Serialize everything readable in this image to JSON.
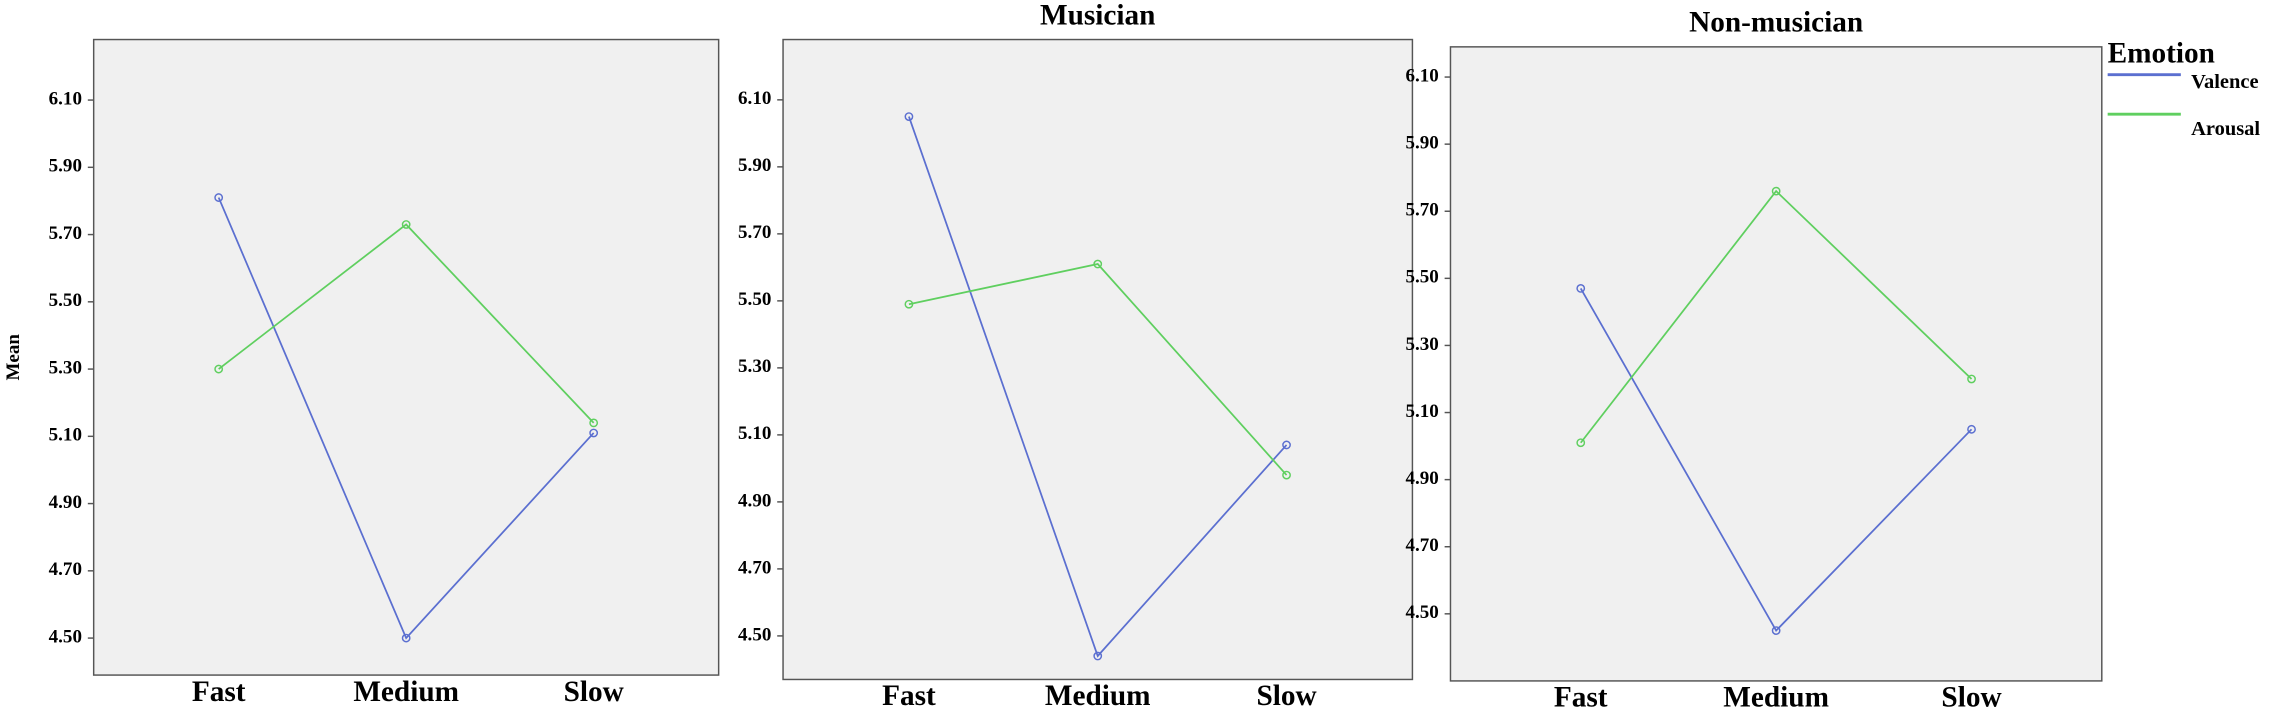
{
  "chart_data": [
    {
      "type": "line",
      "y_label": "Mean",
      "categories": [
        "Fast",
        "Medium",
        "Slow"
      ],
      "series": [
        {
          "name": "Valence",
          "color": "#5b6fd0",
          "values": [
            5.81,
            4.5,
            5.11
          ]
        },
        {
          "name": "Arousal",
          "color": "#5fcf5f",
          "values": [
            5.3,
            5.73,
            5.14
          ]
        }
      ],
      "ylim": [
        4.39,
        6.28
      ],
      "yticks": [
        {
          "value": 4.5,
          "label": "4.50"
        },
        {
          "value": 4.7,
          "label": "4.70"
        },
        {
          "value": 4.9,
          "label": "4.90"
        },
        {
          "value": 5.1,
          "label": "5.10"
        },
        {
          "value": 5.3,
          "label": "5.30"
        },
        {
          "value": 5.5,
          "label": "5.50"
        },
        {
          "value": 5.7,
          "label": "5.70"
        },
        {
          "value": 5.9,
          "label": "5.90"
        },
        {
          "value": 6.1,
          "label": "6.10"
        }
      ]
    },
    {
      "type": "line",
      "title": "Musician",
      "categories": [
        "Fast",
        "Medium",
        "Slow"
      ],
      "series": [
        {
          "name": "Valence",
          "color": "#5b6fd0",
          "values": [
            6.05,
            4.44,
            5.07
          ]
        },
        {
          "name": "Arousal",
          "color": "#5fcf5f",
          "values": [
            5.49,
            5.61,
            4.98
          ]
        }
      ],
      "ylim": [
        4.37,
        6.28
      ],
      "yticks": [
        {
          "value": 4.5,
          "label": "4.50"
        },
        {
          "value": 4.7,
          "label": "4.70"
        },
        {
          "value": 4.9,
          "label": "4.90"
        },
        {
          "value": 5.1,
          "label": "5.10"
        },
        {
          "value": 5.3,
          "label": "5.30"
        },
        {
          "value": 5.5,
          "label": "5.50"
        },
        {
          "value": 5.7,
          "label": "5.70"
        },
        {
          "value": 5.9,
          "label": "5.90"
        },
        {
          "value": 6.1,
          "label": "6.10"
        }
      ]
    },
    {
      "type": "line",
      "title": "Non-musician",
      "legend_title": "Emotion",
      "categories": [
        "Fast",
        "Medium",
        "Slow"
      ],
      "series": [
        {
          "name": "Valence",
          "color": "#5b6fd0",
          "values": [
            5.47,
            4.45,
            5.05
          ]
        },
        {
          "name": "Arousal",
          "color": "#5fcf5f",
          "values": [
            5.01,
            5.76,
            5.2
          ]
        }
      ],
      "ylim": [
        4.3,
        6.19
      ],
      "yticks": [
        {
          "value": 4.5,
          "label": "4.50"
        },
        {
          "value": 4.7,
          "label": "4.70"
        },
        {
          "value": 4.9,
          "label": "4.90"
        },
        {
          "value": 5.1,
          "label": "5.10"
        },
        {
          "value": 5.3,
          "label": "5.30"
        },
        {
          "value": 5.5,
          "label": "5.50"
        },
        {
          "value": 5.7,
          "label": "5.70"
        },
        {
          "value": 5.9,
          "label": "5.90"
        },
        {
          "value": 6.1,
          "label": "6.10"
        }
      ]
    }
  ]
}
